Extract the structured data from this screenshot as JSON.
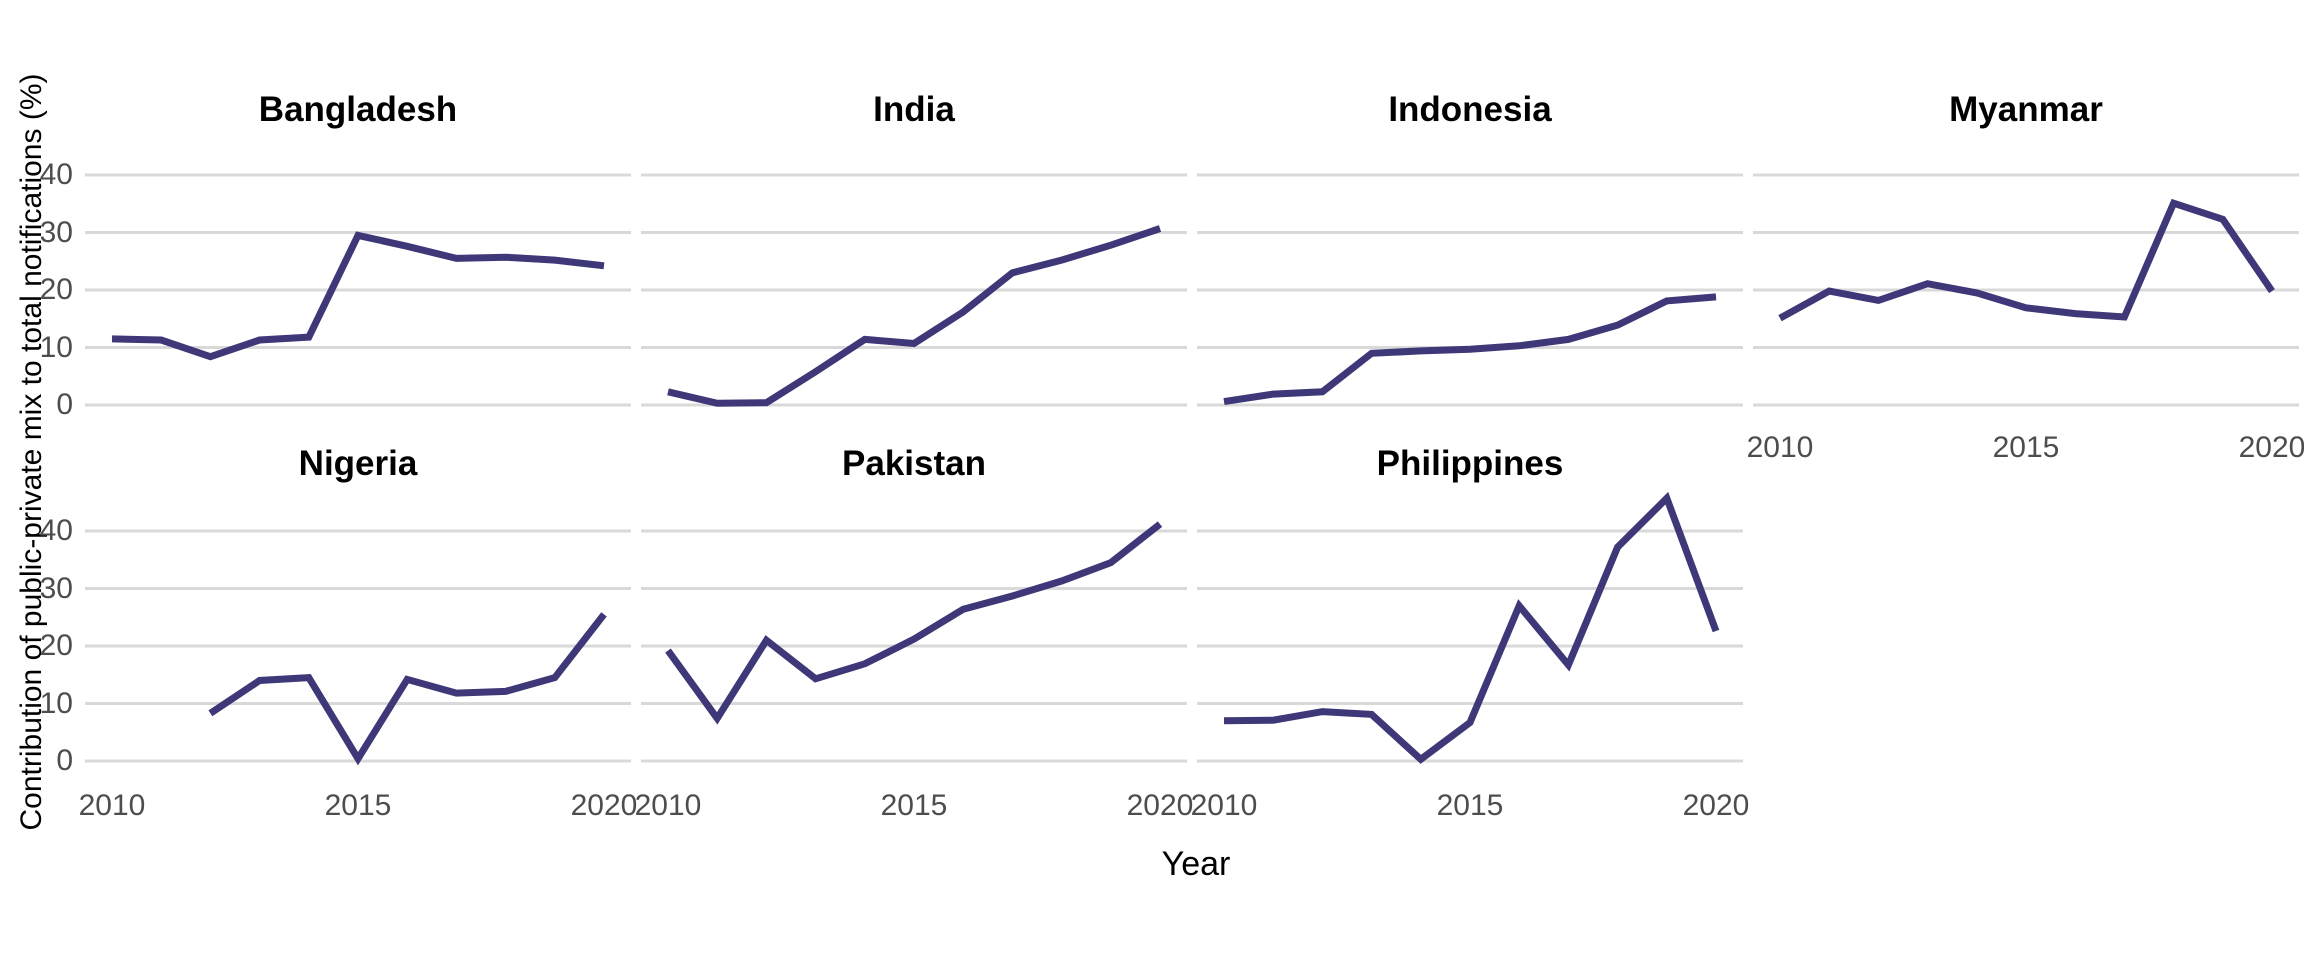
{
  "figure": {
    "xlabel": "Year",
    "ylabel": "Contribution of public-private mix to total notifications (%)"
  },
  "chart_data": {
    "type": "line",
    "title": "",
    "xlabel": "Year",
    "ylabel": "Contribution of public-private mix to total notifications (%)",
    "facet_layout": "2 rows x 4 columns, 7 panels",
    "grid": "horizontal-only",
    "legend": "none",
    "x_ticks": [
      2010,
      2015,
      2020
    ],
    "y_ticks": [
      0,
      10,
      20,
      30,
      40
    ],
    "xlim": [
      2009.45,
      2020.55
    ],
    "ylim": [
      -2.6,
      48
    ],
    "line_color": "#3E3878",
    "grid_color": "#D9D9D9",
    "tick_label_color": "#4D4D4D",
    "series": [
      {
        "name": "Bangladesh",
        "row": 0,
        "col": 0,
        "x": [
          2010,
          2011,
          2012,
          2013,
          2014,
          2015,
          2016,
          2017,
          2018,
          2019,
          2020
        ],
        "values": [
          11.5,
          11.3,
          8.4,
          11.3,
          11.8,
          29.5,
          27.6,
          25.5,
          25.7,
          25.2,
          24.2
        ],
        "show_y_labels": true,
        "show_x_labels": false
      },
      {
        "name": "India",
        "row": 0,
        "col": 1,
        "x": [
          2010,
          2011,
          2012,
          2013,
          2014,
          2015,
          2016,
          2017,
          2018,
          2019,
          2020
        ],
        "values": [
          2.3,
          0.3,
          0.4,
          5.8,
          11.4,
          10.7,
          16.2,
          23.0,
          25.2,
          27.8,
          30.7
        ],
        "show_y_labels": false,
        "show_x_labels": false
      },
      {
        "name": "Indonesia",
        "row": 0,
        "col": 2,
        "x": [
          2010,
          2011,
          2012,
          2013,
          2014,
          2015,
          2016,
          2017,
          2018,
          2019,
          2020
        ],
        "values": [
          0.6,
          1.9,
          2.3,
          9.0,
          9.4,
          9.7,
          10.3,
          11.4,
          13.9,
          18.1,
          18.8
        ],
        "show_y_labels": false,
        "show_x_labels": false
      },
      {
        "name": "Myanmar",
        "row": 0,
        "col": 3,
        "x": [
          2010,
          2011,
          2012,
          2013,
          2014,
          2015,
          2016,
          2017,
          2018,
          2019,
          2020
        ],
        "values": [
          15.1,
          19.8,
          18.2,
          21.1,
          19.5,
          16.9,
          15.9,
          15.3,
          35.1,
          32.3,
          19.8
        ],
        "show_y_labels": false,
        "show_x_labels": true
      },
      {
        "name": "Nigeria",
        "row": 1,
        "col": 0,
        "x": [
          2012,
          2013,
          2014,
          2015,
          2016,
          2017,
          2018,
          2019,
          2020
        ],
        "values": [
          8.3,
          14.0,
          14.5,
          0.4,
          14.2,
          11.8,
          12.1,
          14.5,
          25.5
        ],
        "show_y_labels": true,
        "show_x_labels": true
      },
      {
        "name": "Pakistan",
        "row": 1,
        "col": 1,
        "x": [
          2010,
          2011,
          2012,
          2013,
          2014,
          2015,
          2016,
          2017,
          2018,
          2019,
          2020
        ],
        "values": [
          19.2,
          7.4,
          21.0,
          14.3,
          16.9,
          21.2,
          26.4,
          28.7,
          31.3,
          34.5,
          41.2
        ],
        "show_y_labels": false,
        "show_x_labels": true
      },
      {
        "name": "Philippines",
        "row": 1,
        "col": 2,
        "x": [
          2010,
          2011,
          2012,
          2013,
          2014,
          2015,
          2016,
          2017,
          2018,
          2019,
          2020
        ],
        "values": [
          7.0,
          7.1,
          8.6,
          8.1,
          0.3,
          6.7,
          27.0,
          16.7,
          37.2,
          45.7,
          22.6
        ],
        "show_y_labels": false,
        "show_x_labels": true
      }
    ]
  }
}
